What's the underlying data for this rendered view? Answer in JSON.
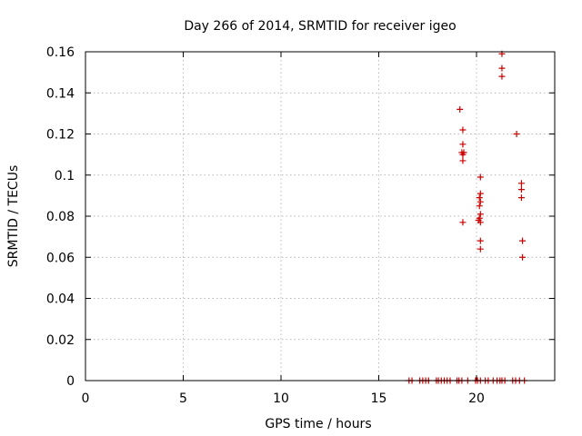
{
  "chart_data": {
    "type": "scatter",
    "title": "Day 266 of 2014, SRMTID for receiver igeo",
    "xlabel": "GPS time / hours",
    "ylabel": "SRMTID / TECUs",
    "xlim": [
      0,
      24
    ],
    "ylim": [
      0,
      0.16
    ],
    "xticks": [
      0,
      5,
      10,
      15,
      20
    ],
    "yticks": [
      0,
      0.02,
      0.04,
      0.06,
      0.08,
      0.1,
      0.12,
      0.14,
      0.16
    ],
    "grid": true,
    "marker": "+",
    "color": "#cc0000",
    "points": [
      [
        16.55,
        0
      ],
      [
        16.7,
        0
      ],
      [
        17.1,
        0
      ],
      [
        17.25,
        0
      ],
      [
        17.4,
        0
      ],
      [
        17.55,
        0
      ],
      [
        17.95,
        0
      ],
      [
        18.05,
        0
      ],
      [
        18.2,
        0
      ],
      [
        18.35,
        0
      ],
      [
        18.5,
        0
      ],
      [
        18.65,
        0
      ],
      [
        19.0,
        0
      ],
      [
        19.1,
        0
      ],
      [
        19.25,
        0
      ],
      [
        19.55,
        0
      ],
      [
        19.95,
        0
      ],
      [
        20.05,
        0
      ],
      [
        20.2,
        0
      ],
      [
        20.45,
        0
      ],
      [
        20.6,
        0
      ],
      [
        20.85,
        0
      ],
      [
        21.05,
        0
      ],
      [
        21.2,
        0
      ],
      [
        21.3,
        0
      ],
      [
        21.45,
        0
      ],
      [
        21.85,
        0
      ],
      [
        22.0,
        0
      ],
      [
        22.2,
        0
      ],
      [
        22.45,
        0
      ],
      [
        19.15,
        0.132
      ],
      [
        19.3,
        0.122
      ],
      [
        19.3,
        0.115
      ],
      [
        19.25,
        0.111
      ],
      [
        19.35,
        0.111
      ],
      [
        19.3,
        0.11
      ],
      [
        19.3,
        0.107
      ],
      [
        19.3,
        0.077
      ],
      [
        20.2,
        0.099
      ],
      [
        20.2,
        0.091
      ],
      [
        20.15,
        0.089
      ],
      [
        20.2,
        0.087
      ],
      [
        20.15,
        0.085
      ],
      [
        20.2,
        0.081
      ],
      [
        20.15,
        0.079
      ],
      [
        20.1,
        0.078
      ],
      [
        20.2,
        0.077
      ],
      [
        20.2,
        0.068
      ],
      [
        20.2,
        0.064
      ],
      [
        21.3,
        0.159
      ],
      [
        21.3,
        0.152
      ],
      [
        21.3,
        0.148
      ],
      [
        22.05,
        0.12
      ],
      [
        22.3,
        0.096
      ],
      [
        22.3,
        0.093
      ],
      [
        22.3,
        0.089
      ],
      [
        22.35,
        0.068
      ],
      [
        22.35,
        0.06
      ]
    ]
  }
}
